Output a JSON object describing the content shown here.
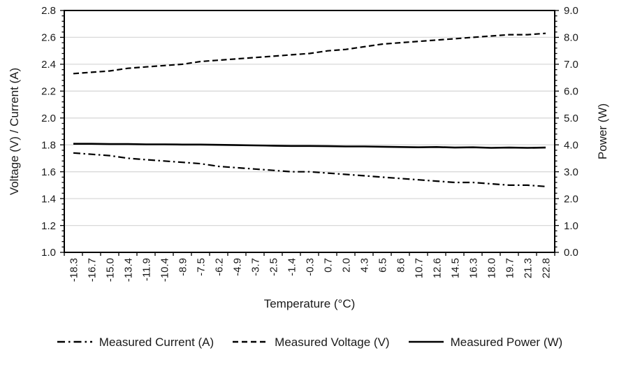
{
  "chart_data": {
    "type": "line",
    "title": "",
    "xlabel": "Temperature (°C)",
    "ylabel_left": "Voltage (V) / Current (A)",
    "ylabel_right": "Power (W)",
    "grid": true,
    "legend_position": "bottom",
    "left_axis": {
      "min": 1.0,
      "max": 2.8,
      "step": 0.2,
      "tick_labels": [
        "1.0",
        "1.2",
        "1.4",
        "1.6",
        "1.8",
        "2.0",
        "2.2",
        "2.4",
        "2.6",
        "2.8"
      ]
    },
    "right_axis": {
      "min": 0.0,
      "max": 9.0,
      "step": 1.0,
      "tick_labels": [
        "0.0",
        "1.0",
        "2.0",
        "3.0",
        "4.0",
        "5.0",
        "6.0",
        "7.0",
        "8.0",
        "9.0"
      ]
    },
    "categories": [
      "-18.3",
      "-16.7",
      "-15.0",
      "-13.4",
      "-11.9",
      "-10.4",
      "-8.9",
      "-7.5",
      "-6.2",
      "-4.9",
      "-3.7",
      "-2.5",
      "-1.4",
      "-0.3",
      "0.7",
      "2.0",
      "4.3",
      "6.5",
      "8.6",
      "10.7",
      "12.6",
      "14.5",
      "16.3",
      "18.0",
      "19.7",
      "21.3",
      "22.8"
    ],
    "series": [
      {
        "name": "Measured Current (A)",
        "axis": "left",
        "line_style": "dashdot",
        "values": [
          1.74,
          1.73,
          1.72,
          1.7,
          1.69,
          1.68,
          1.67,
          1.66,
          1.64,
          1.63,
          1.62,
          1.61,
          1.6,
          1.6,
          1.59,
          1.58,
          1.57,
          1.56,
          1.55,
          1.54,
          1.53,
          1.52,
          1.52,
          1.51,
          1.5,
          1.5,
          1.49
        ]
      },
      {
        "name": "Measured Voltage (V)",
        "axis": "left",
        "line_style": "dashed",
        "values": [
          2.33,
          2.34,
          2.35,
          2.37,
          2.38,
          2.39,
          2.4,
          2.42,
          2.43,
          2.44,
          2.45,
          2.46,
          2.47,
          2.48,
          2.5,
          2.51,
          2.53,
          2.55,
          2.56,
          2.57,
          2.58,
          2.59,
          2.6,
          2.61,
          2.62,
          2.62,
          2.63
        ]
      },
      {
        "name": "Measured Power (W)",
        "axis": "right",
        "line_style": "solid",
        "values": [
          4.04,
          4.04,
          4.03,
          4.03,
          4.02,
          4.02,
          4.01,
          4.01,
          4.0,
          3.99,
          3.98,
          3.97,
          3.96,
          3.96,
          3.95,
          3.94,
          3.94,
          3.93,
          3.92,
          3.91,
          3.92,
          3.9,
          3.91,
          3.89,
          3.9,
          3.89,
          3.9
        ]
      }
    ],
    "colors": {
      "line": "#000000",
      "grid": "#d9d9d9",
      "text": "#1a1a1a",
      "background": "#ffffff"
    }
  }
}
